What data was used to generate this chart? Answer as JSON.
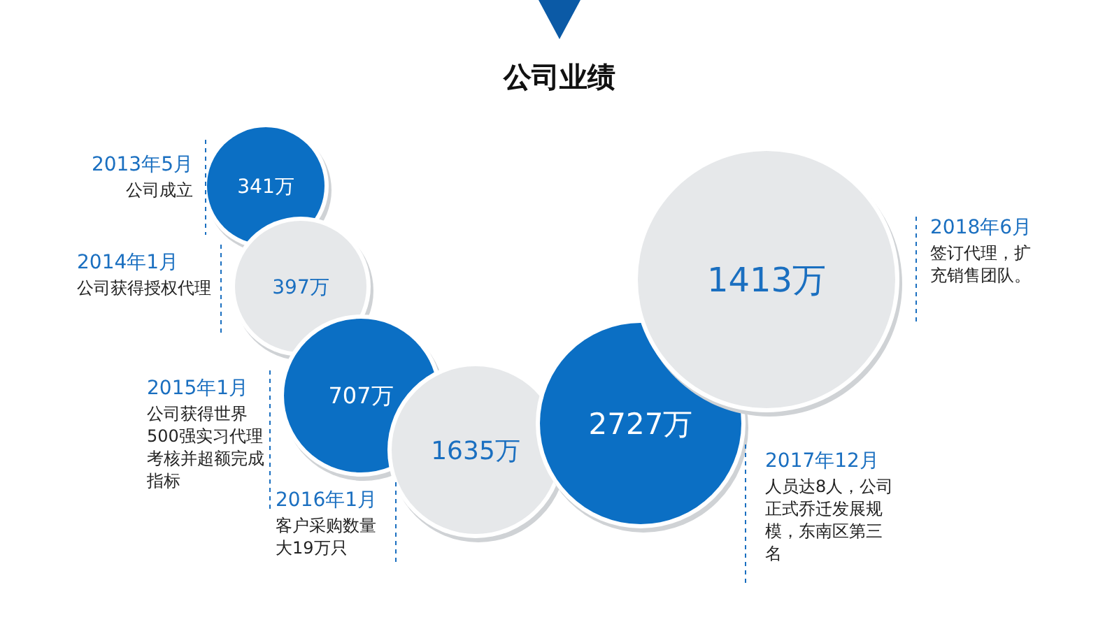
{
  "chart_data": {
    "type": "other",
    "title": "公司业绩",
    "categories": [
      "2013年5月",
      "2014年1月",
      "2015年1月",
      "2016年1月",
      "2017年12月",
      "2018年6月"
    ],
    "values": [
      341,
      397,
      707,
      1635,
      2727,
      1413
    ],
    "value_labels": [
      "341万",
      "397万",
      "707万",
      "1635万",
      "2727万",
      "1413万"
    ],
    "colors": [
      "#0b6fc4",
      "#e6e8ea",
      "#0b6fc4",
      "#e6e8ea",
      "#0b6fc4",
      "#e6e8ea"
    ],
    "annotations": [
      "公司成立",
      "公司获得授权代理",
      "公司获得世界500强实习代理考核并超额完成指标",
      "客户采购数量大19万只",
      "人员达8人，公司正式乔迁发展规模，东南区第三名",
      "签订代理，扩充销售团队。"
    ]
  }
}
